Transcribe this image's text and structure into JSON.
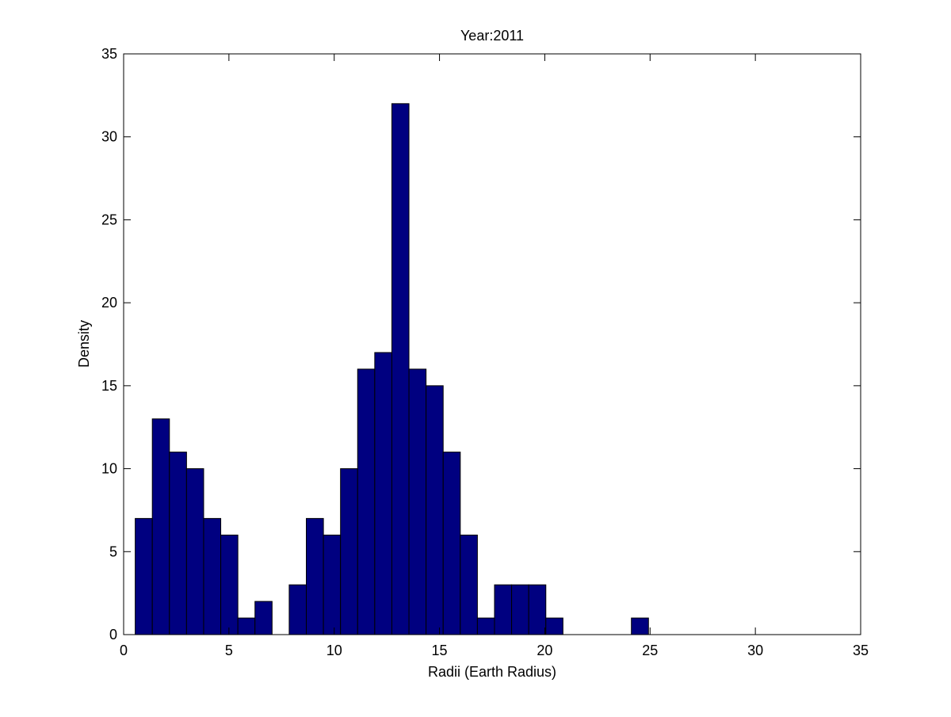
{
  "chart_data": {
    "type": "bar",
    "title": "Year:2011",
    "xlabel": "Radii (Earth Radius)",
    "ylabel": "Density",
    "xlim": [
      0,
      35
    ],
    "ylim": [
      0,
      35
    ],
    "xticks": [
      0,
      5,
      10,
      15,
      20,
      25,
      30,
      35
    ],
    "yticks": [
      0,
      5,
      10,
      15,
      20,
      25,
      30,
      35
    ],
    "grid": false,
    "bar_color": "#000080",
    "edge_color": "#000000",
    "bin_start": 0.55,
    "bin_width": 0.8125,
    "counts": [
      7,
      13,
      11,
      10,
      7,
      6,
      1,
      2,
      0,
      3,
      7,
      6,
      10,
      16,
      17,
      32,
      16,
      15,
      11,
      6,
      1,
      3,
      3,
      3,
      1,
      0,
      0,
      0,
      0,
      1,
      0,
      0,
      0,
      0,
      0,
      0,
      0,
      0,
      0,
      0
    ]
  }
}
